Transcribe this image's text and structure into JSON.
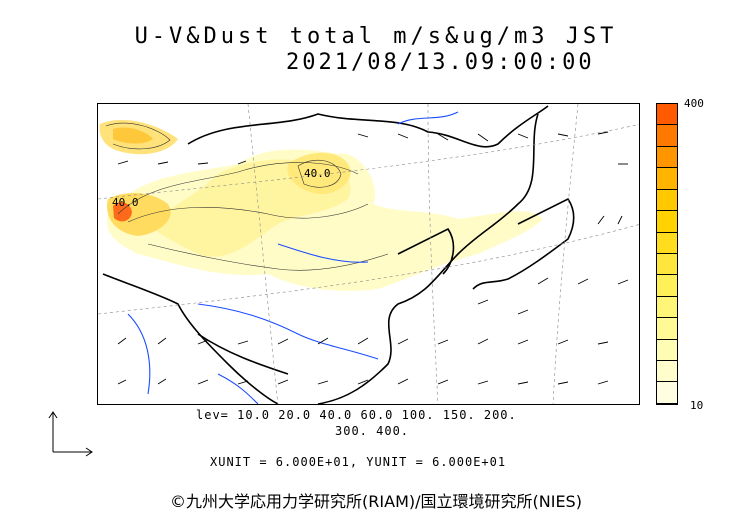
{
  "title": "U-V&Dust total m/s&ug/m3 JST",
  "datetime": "2021/08/13.09:00:00",
  "colorbar": {
    "max_label": "400",
    "min_label": "10",
    "colors": [
      "#ff5a00",
      "#ff7800",
      "#ff9600",
      "#ffb400",
      "#ffc800",
      "#ffd200",
      "#ffdc1e",
      "#ffe63c",
      "#fff05a",
      "#fff578",
      "#fffa96",
      "#fffcb4",
      "#fffdcc",
      "#fffee0"
    ]
  },
  "map": {
    "contour_labels": [
      "40.0",
      "40.0"
    ]
  },
  "legend": {
    "levels_line1": "lev=  10.0  20.0  40.0  60.0  100.  150.  200.",
    "levels_line2": "300.  400.",
    "units": "XUNIT = 6.000E+01, YUNIT = 6.000E+01"
  },
  "copyright": "©九州大学応用力学研究所(RIAM)/国立環境研究所(NIES)"
}
